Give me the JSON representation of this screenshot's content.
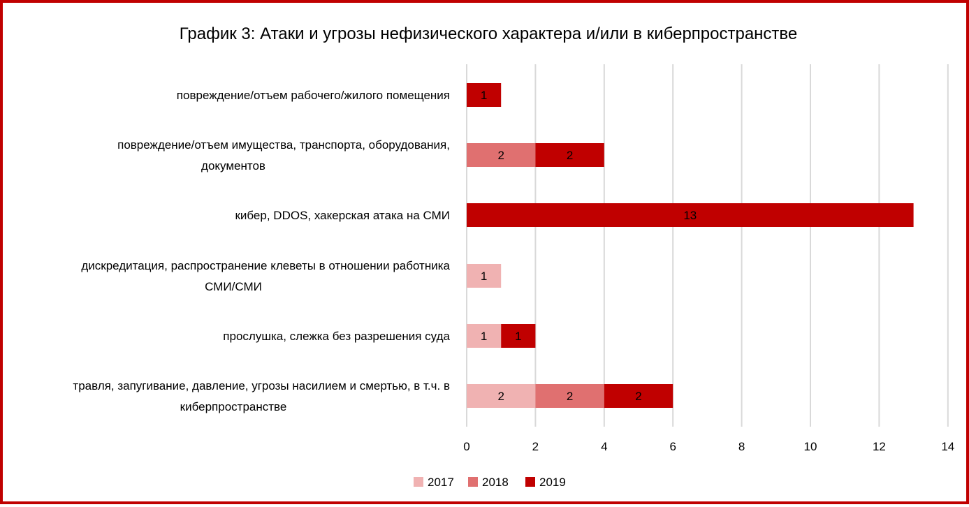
{
  "chart_data": {
    "type": "bar",
    "orientation": "horizontal",
    "stacked": true,
    "title": "График 3: Атаки и угрозы нефизического характера и/или в киберпространстве",
    "categories": [
      [
        "повреждение/отъем рабочего/жилого помещения"
      ],
      [
        "повреждение/отъем имущества, транспорта, оборудования,",
        "документов"
      ],
      [
        "кибер, DDOS, хакерская атака на СМИ"
      ],
      [
        "дискредитация, распространение клеветы в отношении работника",
        "СМИ/СМИ"
      ],
      [
        "прослушка, слежка без разрешения суда"
      ],
      [
        "травля, запугивание, давление, угрозы насилием и смертью,  в т.ч. в",
        "киберпространстве"
      ]
    ],
    "series": [
      {
        "name": "2017",
        "color": "#f0b2b2",
        "values": [
          0,
          0,
          0,
          1,
          1,
          2
        ]
      },
      {
        "name": "2018",
        "color": "#e07070",
        "values": [
          0,
          2,
          0,
          0,
          0,
          2
        ]
      },
      {
        "name": "2019",
        "color": "#c00000",
        "values": [
          1,
          2,
          13,
          0,
          1,
          2
        ]
      }
    ],
    "xlim": [
      0,
      14
    ],
    "xticks": [
      "0",
      "2",
      "4",
      "6",
      "8",
      "10",
      "12",
      "14"
    ],
    "grid": true,
    "legend_position": "bottom"
  },
  "frame_color": "#c00000"
}
